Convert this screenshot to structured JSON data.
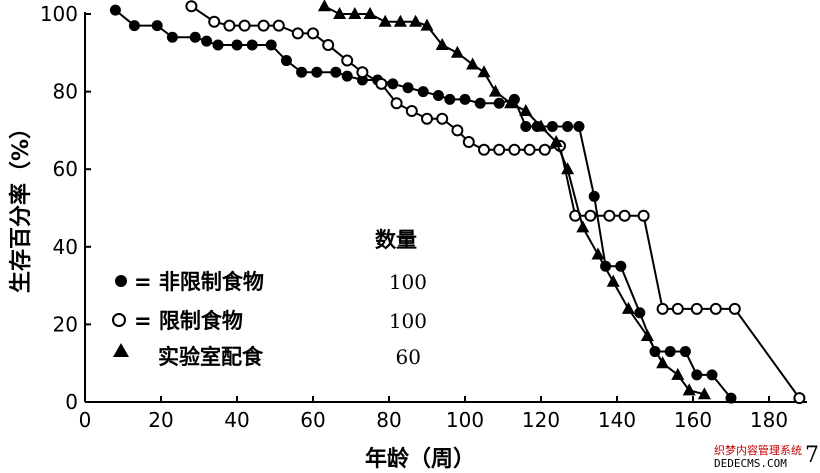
{
  "chart_data": {
    "type": "line",
    "xlabel": "年龄（周）",
    "ylabel": "生存百分率（%）",
    "xlim": [
      0,
      190
    ],
    "ylim": [
      0,
      100
    ],
    "xticks": [
      0,
      20,
      40,
      60,
      80,
      100,
      120,
      140,
      160,
      180
    ],
    "yticks": [
      0,
      20,
      40,
      60,
      80,
      100
    ],
    "grid": false,
    "legend": {
      "position": "bottom-left",
      "header": "数量",
      "entries": [
        {
          "marker": "filled-circle",
          "label": "= 非限制食物",
          "count": "100"
        },
        {
          "marker": "open-circle",
          "label": "= 限制食物",
          "count": "100"
        },
        {
          "marker": "filled-triangle",
          "label": "实验室配食",
          "count": "60"
        }
      ]
    },
    "series": [
      {
        "marker": "filled-circle",
        "points": [
          [
            8,
            101
          ],
          [
            13,
            97
          ],
          [
            19,
            97
          ],
          [
            23,
            94
          ],
          [
            29,
            94
          ],
          [
            32,
            93
          ],
          [
            35,
            92
          ],
          [
            40,
            92
          ],
          [
            44,
            92
          ],
          [
            49,
            92
          ],
          [
            53,
            88
          ],
          [
            57,
            85
          ],
          [
            61,
            85
          ],
          [
            66,
            85
          ],
          [
            69,
            84
          ],
          [
            73,
            83
          ],
          [
            77,
            83
          ],
          [
            81,
            82
          ],
          [
            85,
            81
          ],
          [
            89,
            80
          ],
          [
            93,
            79
          ],
          [
            96,
            78
          ],
          [
            100,
            78
          ],
          [
            104,
            77
          ],
          [
            109,
            77
          ],
          [
            113,
            78
          ],
          [
            116,
            71
          ],
          [
            119,
            71
          ],
          [
            123,
            71
          ],
          [
            127,
            71
          ],
          [
            130,
            71
          ],
          [
            134,
            53
          ],
          [
            137,
            35
          ],
          [
            141,
            35
          ],
          [
            146,
            23
          ],
          [
            150,
            13
          ],
          [
            154,
            13
          ],
          [
            158,
            13
          ],
          [
            161,
            7
          ],
          [
            165,
            7
          ],
          [
            170,
            1
          ]
        ]
      },
      {
        "marker": "open-circle",
        "points": [
          [
            28,
            102
          ],
          [
            34,
            98
          ],
          [
            38,
            97
          ],
          [
            42,
            97
          ],
          [
            47,
            97
          ],
          [
            51,
            97
          ],
          [
            56,
            95
          ],
          [
            60,
            95
          ],
          [
            64,
            92
          ],
          [
            69,
            88
          ],
          [
            73,
            85
          ],
          [
            78,
            82
          ],
          [
            82,
            77
          ],
          [
            86,
            75
          ],
          [
            90,
            73
          ],
          [
            94,
            73
          ],
          [
            98,
            70
          ],
          [
            101,
            67
          ],
          [
            105,
            65
          ],
          [
            109,
            65
          ],
          [
            113,
            65
          ],
          [
            117,
            65
          ],
          [
            121,
            65
          ],
          [
            125,
            66
          ],
          [
            129,
            48
          ],
          [
            133,
            48
          ],
          [
            138,
            48
          ],
          [
            142,
            48
          ],
          [
            147,
            48
          ],
          [
            152,
            24
          ],
          [
            156,
            24
          ],
          [
            161,
            24
          ],
          [
            166,
            24
          ],
          [
            171,
            24
          ],
          [
            188,
            1
          ]
        ]
      },
      {
        "marker": "filled-triangle",
        "points": [
          [
            63,
            102
          ],
          [
            67,
            100
          ],
          [
            71,
            100
          ],
          [
            75,
            100
          ],
          [
            79,
            98
          ],
          [
            83,
            98
          ],
          [
            87,
            98
          ],
          [
            90,
            97
          ],
          [
            94,
            92
          ],
          [
            98,
            90
          ],
          [
            102,
            87
          ],
          [
            105,
            85
          ],
          [
            108,
            80
          ],
          [
            112,
            77
          ],
          [
            116,
            75
          ],
          [
            120,
            71
          ],
          [
            124,
            67
          ],
          [
            127,
            60
          ],
          [
            131,
            45
          ],
          [
            135,
            38
          ],
          [
            139,
            31
          ],
          [
            143,
            24
          ],
          [
            148,
            17
          ],
          [
            152,
            10
          ],
          [
            156,
            7
          ],
          [
            159,
            3
          ],
          [
            163,
            2
          ]
        ]
      }
    ]
  },
  "watermark": {
    "line1": "织梦内容管理系统",
    "line2": "DEDECMS.COM",
    "mark": "7"
  }
}
